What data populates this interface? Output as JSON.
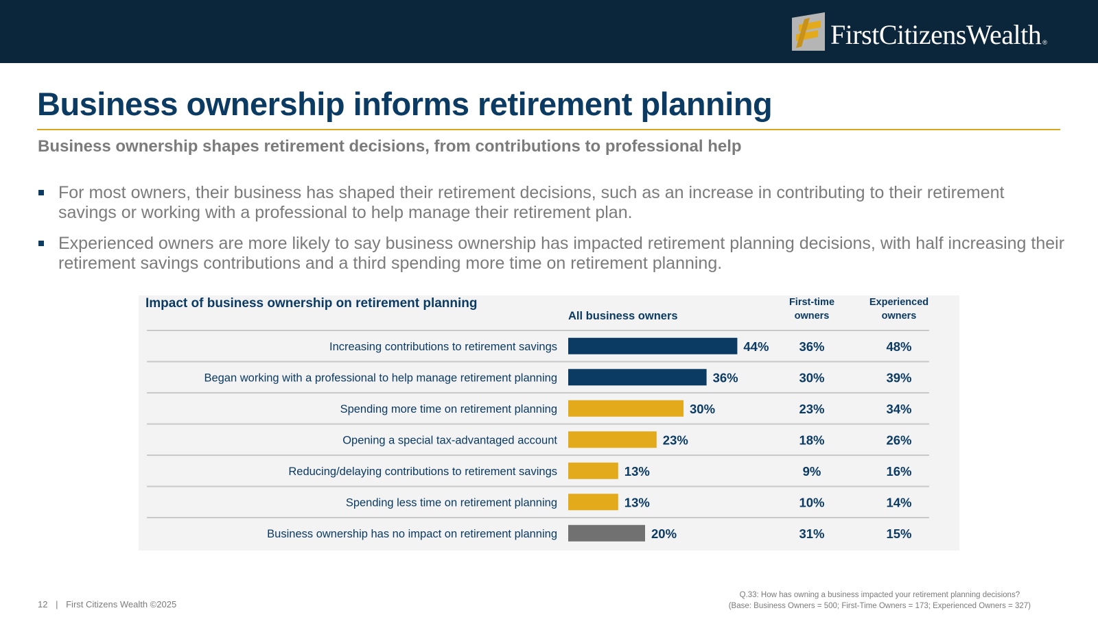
{
  "brand": {
    "name": "FirstCitizensWealth",
    "registered": "®",
    "colors": {
      "navy": "#0b253a",
      "gold": "#e3aa1c",
      "title_blue": "#0b3a63"
    }
  },
  "page": {
    "title": "Business ownership informs retirement planning",
    "subtitle": "Business ownership shapes retirement decisions, from contributions to professional help",
    "bullets": [
      "For most owners, their business has shaped their retirement decisions, such as an increase in contributing to their retirement savings or working with a professional to help manage their retirement plan.",
      "Experienced owners are more likely to say business ownership has impacted retirement planning decisions, with half increasing their retirement savings contributions and a third spending more time on retirement planning."
    ]
  },
  "chart_data": {
    "type": "bar",
    "orientation": "horizontal",
    "title": "Impact of business ownership on retirement planning",
    "bar_series_label": "All business owners",
    "value_format": "percent",
    "xlim": [
      0,
      50
    ],
    "categories": [
      "Increasing contributions to retirement savings",
      "Began working with a professional to help manage retirement planning",
      "Spending more time on retirement planning",
      "Opening a special tax-advantaged account",
      "Reducing/delaying contributions to retirement savings",
      "Spending less time on retirement planning",
      "Business ownership has no impact on retirement planning"
    ],
    "values": [
      44,
      36,
      30,
      23,
      13,
      13,
      20
    ],
    "bar_colors": [
      "#0b3a63",
      "#0b3a63",
      "#e3aa1c",
      "#e3aa1c",
      "#e3aa1c",
      "#e3aa1c",
      "#717171"
    ],
    "table_columns": [
      {
        "header_line1": "First-time",
        "header_line2": "owners",
        "values": [
          36,
          30,
          23,
          18,
          9,
          10,
          31
        ]
      },
      {
        "header_line1": "Experienced",
        "header_line2": "owners",
        "values": [
          48,
          39,
          34,
          26,
          16,
          14,
          15
        ]
      }
    ]
  },
  "footer": {
    "page_number": "12",
    "separator": "|",
    "copyright": "First Citizens Wealth ©2025",
    "question": "Q.33:  How has owning a business impacted your retirement planning decisions?",
    "base": "(Base: Business Owners = 500; First-Time Owners = 173; Experienced Owners = 327)"
  }
}
